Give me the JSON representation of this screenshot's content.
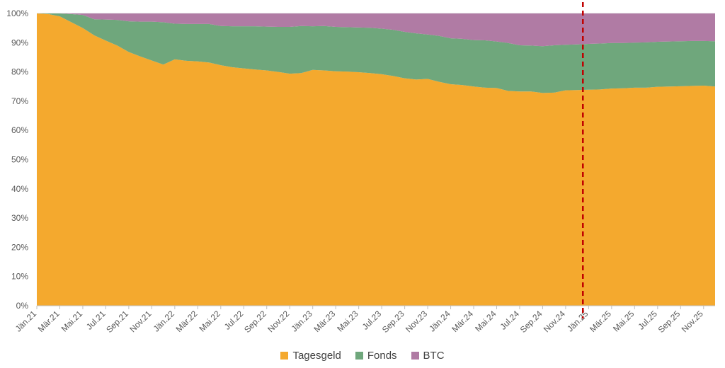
{
  "chart_data": {
    "type": "area",
    "stacked_percent": true,
    "title": "",
    "xlabel": "",
    "ylabel": "",
    "ylim": [
      0,
      100
    ],
    "y_ticks": [
      "0%",
      "10%",
      "20%",
      "30%",
      "40%",
      "50%",
      "60%",
      "70%",
      "80%",
      "90%",
      "100%"
    ],
    "x_tick_labels": [
      "Jän.21",
      "Mär.21",
      "Mai.21",
      "Jul.21",
      "Sep.21",
      "Nov.21",
      "Jän.22",
      "Mär.22",
      "Mai.22",
      "Jul.22",
      "Sep.22",
      "Nov.22",
      "Jän.23",
      "Mär.23",
      "Mai.23",
      "Jul.23",
      "Sep.23",
      "Nov.23",
      "Jän.24",
      "Mär.24",
      "Mai.24",
      "Jul.24",
      "Sep.24",
      "Nov.24",
      "Jän.25",
      "Mär.25",
      "Mai.25",
      "Jul.25",
      "Sep.25",
      "Nov.25"
    ],
    "x": [
      "Jän.21",
      "Feb.21",
      "Mär.21",
      "Apr.21",
      "Mai.21",
      "Jun.21",
      "Jul.21",
      "Aug.21",
      "Sep.21",
      "Okt.21",
      "Nov.21",
      "Dez.21",
      "Jän.22",
      "Feb.22",
      "Mär.22",
      "Apr.22",
      "Mai.22",
      "Jun.22",
      "Jul.22",
      "Aug.22",
      "Sep.22",
      "Okt.22",
      "Nov.22",
      "Dez.22",
      "Jän.23",
      "Feb.23",
      "Mär.23",
      "Apr.23",
      "Mai.23",
      "Jun.23",
      "Jul.23",
      "Aug.23",
      "Sep.23",
      "Okt.23",
      "Nov.23",
      "Dez.23",
      "Jän.24",
      "Feb.24",
      "Mär.24",
      "Apr.24",
      "Mai.24",
      "Jun.24",
      "Jul.24",
      "Aug.24",
      "Sep.24",
      "Okt.24",
      "Nov.24",
      "Dez.24",
      "Jän.25",
      "Feb.25",
      "Mär.25",
      "Apr.25",
      "Mai.25",
      "Jun.25",
      "Jul.25",
      "Aug.25",
      "Sep.25",
      "Okt.25",
      "Nov.25",
      "Dez.25"
    ],
    "series": [
      {
        "name": "Tagesgeld",
        "color": "#F4A92E",
        "values": [
          100,
          99.8,
          99,
          97,
          95,
          92.5,
          90.7,
          89,
          86.8,
          85.3,
          83.9,
          82.5,
          84.3,
          83.8,
          83.6,
          83.2,
          82.3,
          81.6,
          81.2,
          80.8,
          80.5,
          80,
          79.4,
          79.6,
          80.7,
          80.5,
          80.2,
          80.1,
          79.9,
          79.6,
          79.2,
          78.6,
          77.8,
          77.4,
          77.6,
          76.6,
          75.8,
          75.5,
          75,
          74.6,
          74.5,
          73.5,
          73.3,
          73.3,
          72.8,
          72.9,
          73.7,
          73.8,
          73.9,
          74,
          74.3,
          74.4,
          74.6,
          74.6,
          74.9,
          75,
          75.1,
          75.2,
          75.3,
          75
        ]
      },
      {
        "name": "Fonds",
        "color": "#6FA77C",
        "values": [
          0,
          0.2,
          1,
          2.8,
          4.5,
          5.5,
          7.2,
          8.8,
          10.5,
          11.9,
          13.3,
          14.5,
          12.2,
          12.6,
          12.8,
          13.2,
          13.4,
          14,
          14.4,
          14.8,
          15,
          15.4,
          16,
          16.1,
          14.9,
          15.2,
          15.2,
          15.2,
          15.3,
          15.5,
          15.6,
          15.8,
          15.9,
          15.8,
          15.2,
          15.7,
          15.7,
          15.8,
          15.9,
          16.2,
          15.9,
          16.4,
          15.8,
          15.7,
          16,
          16.2,
          15.6,
          15.6,
          15.7,
          15.7,
          15.6,
          15.5,
          15.4,
          15.5,
          15.4,
          15.4,
          15.4,
          15.4,
          15.3,
          15.5
        ]
      },
      {
        "name": "BTC",
        "color": "#B07BA4",
        "values": [
          0,
          0,
          0,
          0.2,
          0.5,
          2,
          2.1,
          2.2,
          2.7,
          2.8,
          2.8,
          3,
          3.5,
          3.6,
          3.6,
          3.6,
          4.3,
          4.4,
          4.4,
          4.4,
          4.5,
          4.6,
          4.6,
          4.3,
          4.4,
          4.3,
          4.6,
          4.7,
          4.8,
          4.9,
          5.2,
          5.6,
          6.3,
          6.8,
          7.2,
          7.7,
          8.5,
          8.7,
          9.1,
          9.2,
          9.6,
          10.1,
          10.9,
          11,
          11.2,
          10.9,
          10.7,
          10.6,
          10.4,
          10.3,
          10.1,
          10.1,
          10,
          9.9,
          9.7,
          9.6,
          9.5,
          9.4,
          9.4,
          9.5
        ]
      }
    ],
    "marker": {
      "type": "vertical-dashed-line",
      "at": "Dez.24",
      "color": "#C00000"
    },
    "legend_position": "bottom",
    "grid": "horizontal"
  }
}
